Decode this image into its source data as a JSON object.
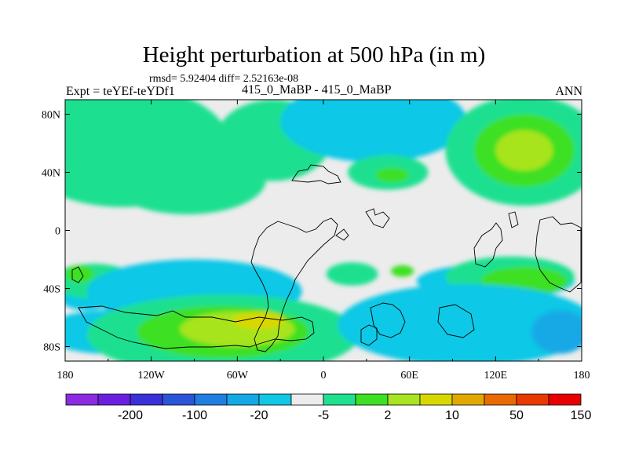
{
  "chart_data": {
    "type": "heatmap",
    "title": "Height perturbation at 500 hPa (in m)",
    "subtitle": "rmsd= 5.92404 diff= 2.52163e-08",
    "center_label": "415_0_MaBP - 415_0_MaBP",
    "left_label": "Expt = teYEf-teYDf1",
    "right_label": "ANN",
    "x_ticks": [
      {
        "value": -180,
        "label": "180"
      },
      {
        "value": -120,
        "label": "120W"
      },
      {
        "value": -60,
        "label": "60W"
      },
      {
        "value": 0,
        "label": "0"
      },
      {
        "value": 60,
        "label": "60E"
      },
      {
        "value": 120,
        "label": "120E"
      },
      {
        "value": 180,
        "label": "180"
      }
    ],
    "y_ticks": [
      {
        "value": 80,
        "label": "80N"
      },
      {
        "value": 40,
        "label": "40N"
      },
      {
        "value": 0,
        "label": "0"
      },
      {
        "value": -40,
        "label": "40S"
      },
      {
        "value": -80,
        "label": "80S"
      }
    ],
    "xlim": [
      -180,
      180
    ],
    "ylim": [
      -90,
      90
    ],
    "colorbar": {
      "colors": [
        "#8b2be2",
        "#6a1fe0",
        "#3a2fd8",
        "#2a55d8",
        "#1f7ee0",
        "#13a9e6",
        "#10c8e6",
        "#ececec",
        "#1fe090",
        "#3ee024",
        "#a8e41f",
        "#d8d800",
        "#e0a800",
        "#e86a00",
        "#e83a00",
        "#e80000"
      ],
      "labels": [
        {
          "after_index": 1,
          "label": "-200"
        },
        {
          "after_index": 3,
          "label": "-100"
        },
        {
          "after_index": 5,
          "label": "-20"
        },
        {
          "after_index": 7,
          "label": "-5"
        },
        {
          "after_index": 9,
          "label": "2"
        },
        {
          "after_index": 11,
          "label": "10"
        },
        {
          "after_index": 13,
          "label": "50"
        },
        {
          "after_index": 15,
          "label": "150"
        }
      ]
    },
    "regions": [
      {
        "level": 4,
        "lon": -135,
        "lat": 48,
        "rlon": 38,
        "rlat": 16
      },
      {
        "level": 5,
        "lon": -140,
        "lat": 55,
        "rlon": 56,
        "rlat": 30
      },
      {
        "level": 8,
        "lon": -140,
        "lat": 58,
        "rlon": 75,
        "rlat": 42
      },
      {
        "level": 5,
        "lon": -85,
        "lat": 30,
        "rlon": 35,
        "rlat": 12
      },
      {
        "level": 6,
        "lon": -90,
        "lat": 33,
        "rlon": 42,
        "rlat": 17
      },
      {
        "level": 8,
        "lon": -95,
        "lat": 35,
        "rlon": 55,
        "rlat": 24
      },
      {
        "level": 9,
        "lon": -30,
        "lat": 57,
        "rlon": 16,
        "rlat": 6
      },
      {
        "level": 8,
        "lon": -35,
        "lat": 62,
        "rlon": 40,
        "rlat": 28
      },
      {
        "level": 4,
        "lon": 35,
        "lat": 65,
        "rlon": 32,
        "rlat": 16
      },
      {
        "level": 5,
        "lon": 35,
        "lat": 70,
        "rlon": 52,
        "rlat": 22
      },
      {
        "level": 6,
        "lon": 35,
        "lat": 75,
        "rlon": 65,
        "rlat": 28
      },
      {
        "level": 8,
        "lon": 45,
        "lat": 40,
        "rlon": 28,
        "rlat": 12
      },
      {
        "level": 9,
        "lon": 48,
        "lat": 38,
        "rlon": 12,
        "rlat": 5
      },
      {
        "level": 8,
        "lon": 140,
        "lat": 55,
        "rlon": 55,
        "rlat": 38
      },
      {
        "level": 9,
        "lon": 140,
        "lat": 55,
        "rlon": 35,
        "rlat": 25
      },
      {
        "level": 10,
        "lon": 140,
        "lat": 55,
        "rlon": 20,
        "rlat": 14
      },
      {
        "level": 6,
        "lon": -165,
        "lat": -45,
        "rlon": 20,
        "rlat": 10
      },
      {
        "level": 8,
        "lon": -160,
        "lat": -35,
        "rlon": 30,
        "rlat": 12
      },
      {
        "level": 9,
        "lon": -170,
        "lat": -30,
        "rlon": 10,
        "rlat": 6
      },
      {
        "level": 5,
        "lon": -100,
        "lat": -45,
        "rlon": 55,
        "rlat": 14
      },
      {
        "level": 6,
        "lon": -90,
        "lat": -42,
        "rlon": 75,
        "rlat": 22
      },
      {
        "level": 6,
        "lon": -150,
        "lat": -70,
        "rlon": 45,
        "rlat": 15
      },
      {
        "level": 8,
        "lon": -70,
        "lat": -72,
        "rlon": 95,
        "rlat": 28
      },
      {
        "level": 9,
        "lon": -70,
        "lat": -70,
        "rlon": 60,
        "rlat": 18
      },
      {
        "level": 10,
        "lon": -60,
        "lat": -68,
        "rlon": 40,
        "rlat": 12
      },
      {
        "level": 11,
        "lon": -45,
        "lat": -62,
        "rlon": 18,
        "rlat": 6
      },
      {
        "level": 8,
        "lon": 20,
        "lat": -30,
        "rlon": 18,
        "rlat": 8
      },
      {
        "level": 9,
        "lon": 55,
        "lat": -28,
        "rlon": 8,
        "rlat": 4
      },
      {
        "level": 6,
        "lon": 120,
        "lat": -35,
        "rlon": 55,
        "rlat": 12
      },
      {
        "level": 8,
        "lon": 130,
        "lat": -32,
        "rlon": 45,
        "rlat": 14
      },
      {
        "level": 9,
        "lon": 140,
        "lat": -35,
        "rlon": 30,
        "rlat": 10
      },
      {
        "level": 5,
        "lon": 95,
        "lat": -68,
        "rlon": 70,
        "rlat": 22
      },
      {
        "level": 6,
        "lon": 100,
        "lat": -65,
        "rlon": 90,
        "rlat": 28
      },
      {
        "level": 5,
        "lon": 165,
        "lat": -70,
        "rlon": 20,
        "rlat": 15
      }
    ]
  }
}
